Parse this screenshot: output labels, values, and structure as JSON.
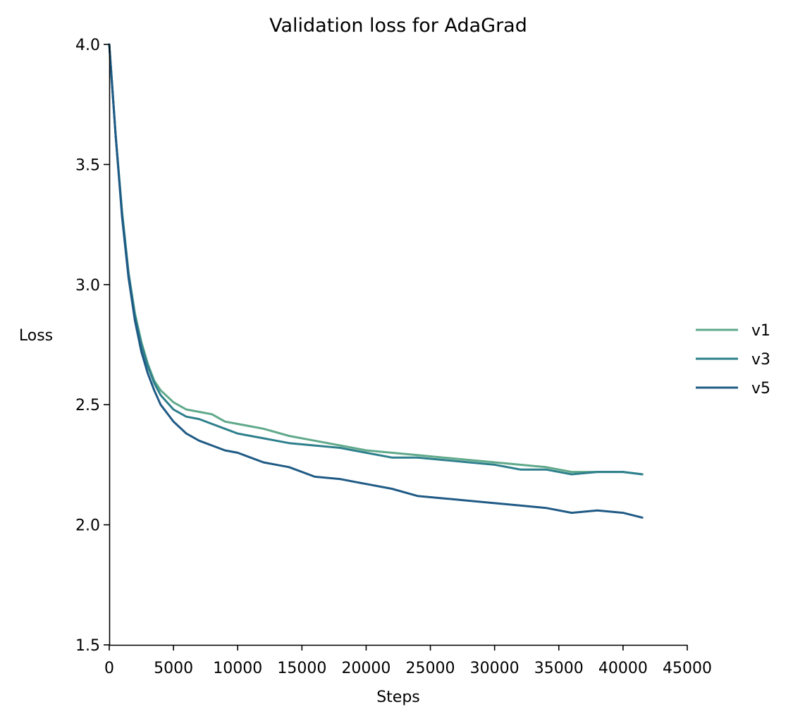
{
  "chart_data": {
    "type": "line",
    "title": "Validation loss for AdaGrad",
    "xlabel": "Steps",
    "ylabel": "Loss",
    "xlim": [
      0,
      45000
    ],
    "ylim": [
      1.5,
      4.0
    ],
    "xticks": [
      0,
      5000,
      10000,
      15000,
      20000,
      25000,
      30000,
      35000,
      40000,
      45000
    ],
    "xtick_labels": [
      "0",
      "5000",
      "10000",
      "15000",
      "20000",
      "25000",
      "30000",
      "35000",
      "40000",
      "45000"
    ],
    "yticks": [
      1.5,
      2.0,
      2.5,
      3.0,
      3.5,
      4.0
    ],
    "ytick_labels": [
      "1.5",
      "2.0",
      "2.5",
      "3.0",
      "3.5",
      "4.0"
    ],
    "grid": false,
    "legend_position": "right",
    "x": [
      0,
      500,
      1000,
      1500,
      2000,
      2500,
      3000,
      3500,
      4000,
      5000,
      6000,
      7000,
      8000,
      9000,
      10000,
      11000,
      12000,
      14000,
      16000,
      18000,
      20000,
      22000,
      24000,
      26000,
      28000,
      30000,
      32000,
      34000,
      36000,
      38000,
      40000,
      41500
    ],
    "series": [
      {
        "name": "v1",
        "color": "#5fa98a",
        "values": [
          4.0,
          3.62,
          3.3,
          3.05,
          2.88,
          2.76,
          2.67,
          2.6,
          2.56,
          2.51,
          2.48,
          2.47,
          2.46,
          2.43,
          2.42,
          2.41,
          2.4,
          2.37,
          2.35,
          2.33,
          2.31,
          2.3,
          2.29,
          2.28,
          2.27,
          2.26,
          2.25,
          2.24,
          2.22,
          2.22,
          2.22,
          2.21
        ]
      },
      {
        "name": "v3",
        "color": "#2d7f8c",
        "values": [
          4.0,
          3.62,
          3.3,
          3.05,
          2.87,
          2.75,
          2.66,
          2.59,
          2.54,
          2.48,
          2.45,
          2.44,
          2.42,
          2.4,
          2.38,
          2.37,
          2.36,
          2.34,
          2.33,
          2.32,
          2.3,
          2.28,
          2.28,
          2.27,
          2.26,
          2.25,
          2.23,
          2.23,
          2.21,
          2.22,
          2.22,
          2.21
        ]
      },
      {
        "name": "v5",
        "color": "#1f5a85",
        "values": [
          4.0,
          3.62,
          3.28,
          3.03,
          2.85,
          2.72,
          2.63,
          2.56,
          2.5,
          2.43,
          2.38,
          2.35,
          2.33,
          2.31,
          2.3,
          2.28,
          2.26,
          2.24,
          2.2,
          2.19,
          2.17,
          2.15,
          2.12,
          2.11,
          2.1,
          2.09,
          2.08,
          2.07,
          2.05,
          2.06,
          2.05,
          2.03
        ]
      }
    ]
  }
}
